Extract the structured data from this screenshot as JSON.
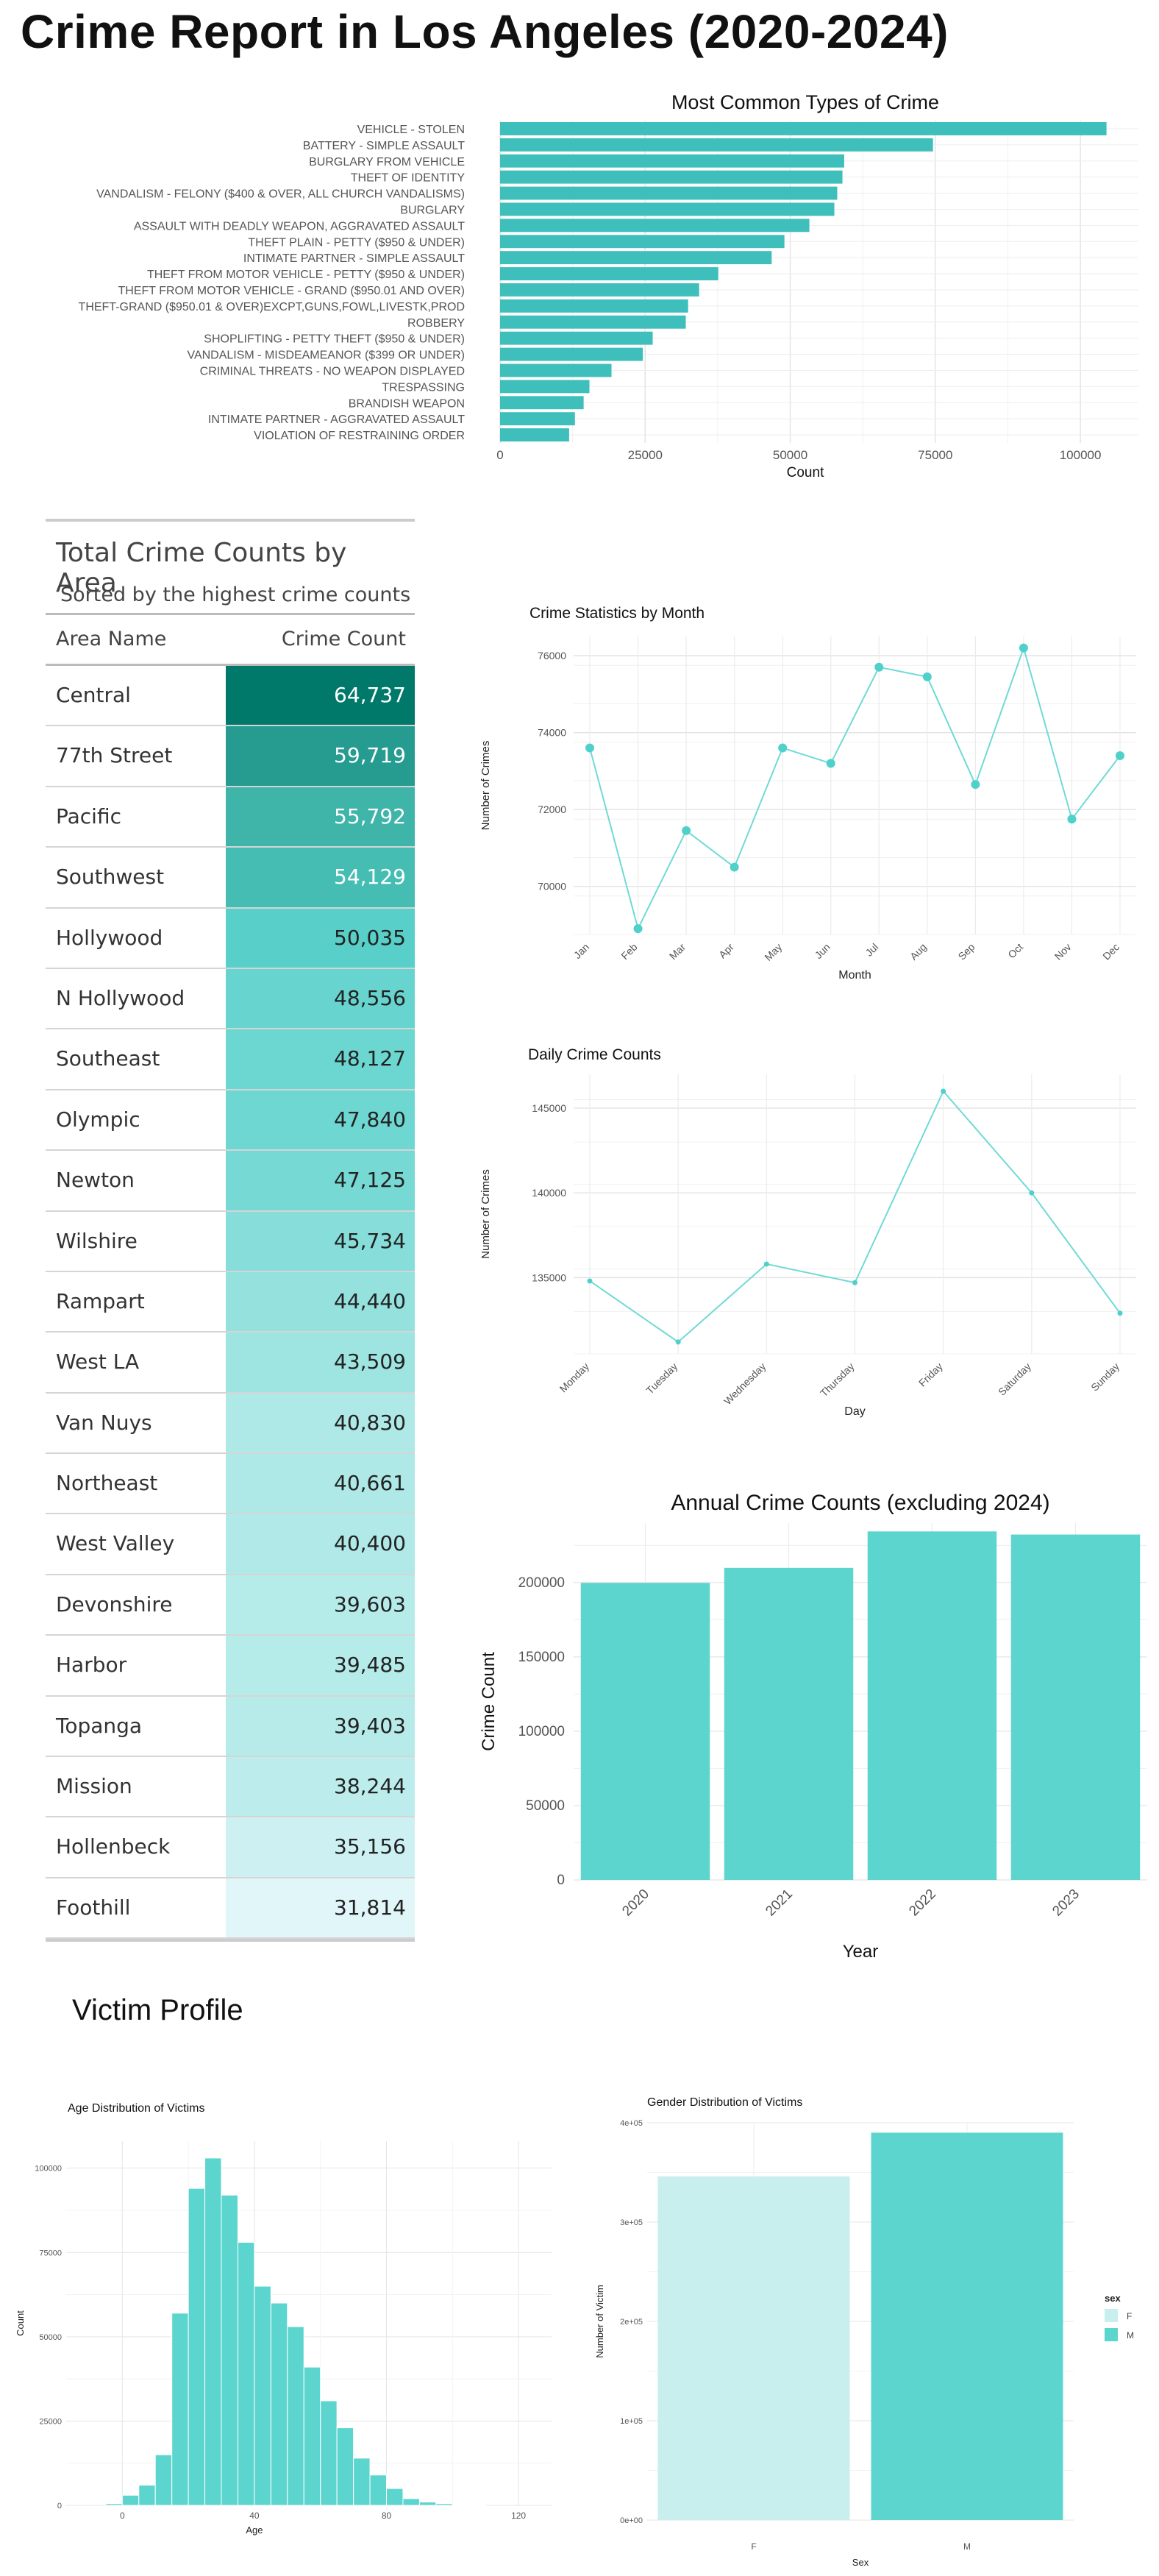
{
  "page": {
    "title": "Crime Report in Los Angeles (2020-2024)",
    "victim_title": "Victim Profile"
  },
  "colors": {
    "teal": "#3fbfbb",
    "light_teal": "#5dd5cf",
    "pale": "#c8eeee"
  },
  "crime_types": {
    "title": "Most Common Types of Crime",
    "xlabel": "Count",
    "ticks": [
      "0",
      "25000",
      "50000",
      "75000",
      "100000"
    ]
  },
  "area_table": {
    "title": "Total Crime Counts by Area",
    "subtitle": "Sorted by the highest crime counts",
    "col_area": "Area Name",
    "col_count": "Crime Count",
    "rows": [
      {
        "name": "Central",
        "count": "64,737",
        "value": 64737
      },
      {
        "name": "77th Street",
        "count": "59,719",
        "value": 59719
      },
      {
        "name": "Pacific",
        "count": "55,792",
        "value": 55792
      },
      {
        "name": "Southwest",
        "count": "54,129",
        "value": 54129
      },
      {
        "name": "Hollywood",
        "count": "50,035",
        "value": 50035
      },
      {
        "name": "N Hollywood",
        "count": "48,556",
        "value": 48556
      },
      {
        "name": "Southeast",
        "count": "48,127",
        "value": 48127
      },
      {
        "name": "Olympic",
        "count": "47,840",
        "value": 47840
      },
      {
        "name": "Newton",
        "count": "47,125",
        "value": 47125
      },
      {
        "name": "Wilshire",
        "count": "45,734",
        "value": 45734
      },
      {
        "name": "Rampart",
        "count": "44,440",
        "value": 44440
      },
      {
        "name": "West LA",
        "count": "43,509",
        "value": 43509
      },
      {
        "name": "Van Nuys",
        "count": "40,830",
        "value": 40830
      },
      {
        "name": "Northeast",
        "count": "40,661",
        "value": 40661
      },
      {
        "name": "West Valley",
        "count": "40,400",
        "value": 40400
      },
      {
        "name": "Devonshire",
        "count": "39,603",
        "value": 39603
      },
      {
        "name": "Harbor",
        "count": "39,485",
        "value": 39485
      },
      {
        "name": "Topanga",
        "count": "39,403",
        "value": 39403
      },
      {
        "name": "Mission",
        "count": "38,244",
        "value": 38244
      },
      {
        "name": "Hollenbeck",
        "count": "35,156",
        "value": 35156
      },
      {
        "name": "Foothill",
        "count": "31,814",
        "value": 31814
      }
    ]
  },
  "chart_data": [
    {
      "id": "crime_types",
      "type": "bar",
      "orientation": "horizontal",
      "title": "Most Common Types of Crime",
      "xlabel": "Count",
      "ylabel": "",
      "xlim": [
        0,
        110000
      ],
      "categories": [
        "VEHICLE - STOLEN",
        "BATTERY - SIMPLE ASSAULT",
        "BURGLARY FROM VEHICLE",
        "THEFT OF IDENTITY",
        "VANDALISM - FELONY ($400 & OVER, ALL CHURCH VANDALISMS)",
        "BURGLARY",
        "ASSAULT WITH DEADLY WEAPON, AGGRAVATED ASSAULT",
        "THEFT PLAIN - PETTY ($950 & UNDER)",
        "INTIMATE PARTNER - SIMPLE ASSAULT",
        "THEFT FROM MOTOR VEHICLE - PETTY ($950 & UNDER)",
        "THEFT FROM MOTOR VEHICLE - GRAND ($950.01 AND OVER)",
        "THEFT-GRAND ($950.01 & OVER)EXCPT,GUNS,FOWL,LIVESTK,PROD",
        "ROBBERY",
        "SHOPLIFTING - PETTY THEFT ($950 & UNDER)",
        "VANDALISM - MISDEAMEANOR ($399 OR UNDER)",
        "CRIMINAL THREATS - NO WEAPON DISPLAYED",
        "TRESPASSING",
        "BRANDISH WEAPON",
        "INTIMATE PARTNER - AGGRAVATED ASSAULT",
        "VIOLATION OF RESTRAINING ORDER"
      ],
      "values": [
        104500,
        74600,
        59300,
        59000,
        58100,
        57600,
        53300,
        49000,
        46800,
        37600,
        34300,
        32400,
        32000,
        26300,
        24600,
        19200,
        15400,
        14400,
        12900,
        11900
      ],
      "grid": true
    },
    {
      "id": "monthly",
      "type": "line",
      "title": "Crime Statistics by Month",
      "xlabel": "Month",
      "ylabel": "Number of Crimes",
      "categories": [
        "Jan",
        "Feb",
        "Mar",
        "Apr",
        "May",
        "Jun",
        "Jul",
        "Aug",
        "Sep",
        "Oct",
        "Nov",
        "Dec"
      ],
      "values": [
        73600,
        68900,
        71450,
        70500,
        73600,
        73200,
        75700,
        75450,
        72650,
        76200,
        71750,
        73400
      ],
      "yticks": [
        "70000",
        "72000",
        "74000",
        "76000"
      ],
      "grid": true
    },
    {
      "id": "daily",
      "type": "line",
      "title": "Daily Crime Counts",
      "xlabel": "Day",
      "ylabel": "Number of Crimes",
      "categories": [
        "Monday",
        "Tuesday",
        "Wednesday",
        "Thursday",
        "Friday",
        "Saturday",
        "Sunday"
      ],
      "values": [
        134800,
        131200,
        135800,
        134700,
        146000,
        140000,
        132900
      ],
      "yticks": [
        "135000",
        "140000",
        "145000"
      ],
      "grid": true
    },
    {
      "id": "annual",
      "type": "bar",
      "title": "Annual Crime Counts (excluding 2024)",
      "xlabel": "Year",
      "ylabel": "Crime Count",
      "categories": [
        "2020",
        "2021",
        "2022",
        "2023"
      ],
      "values": [
        199800,
        209900,
        234400,
        232300
      ],
      "yticks": [
        "0",
        "50000",
        "100000",
        "150000",
        "200000"
      ],
      "grid": true
    },
    {
      "id": "age",
      "type": "bar",
      "title": "Age Distribution of Victims",
      "xlabel": "Age",
      "ylabel": "Count",
      "bin_width": 5,
      "bin_starts": [
        -5,
        0,
        5,
        10,
        15,
        20,
        25,
        30,
        35,
        40,
        45,
        50,
        55,
        60,
        65,
        70,
        75,
        80,
        85,
        90,
        95,
        100,
        105
      ],
      "values": [
        500,
        3000,
        6000,
        15000,
        57000,
        94000,
        103000,
        92000,
        78000,
        65000,
        60000,
        53000,
        41000,
        31000,
        23000,
        14000,
        9000,
        5000,
        2000,
        1000,
        500,
        200,
        100
      ],
      "xticks": [
        "0",
        "40",
        "80",
        "120"
      ],
      "yticks": [
        "0",
        "25000",
        "50000",
        "75000",
        "100000"
      ],
      "grid": true
    },
    {
      "id": "gender",
      "type": "bar",
      "title": "Gender Distribution of Victims",
      "xlabel": "Sex",
      "ylabel": "Number of Victim",
      "categories": [
        "F",
        "M"
      ],
      "values": [
        346000,
        390000
      ],
      "yticks": [
        "0e+00",
        "1e+05",
        "2e+05",
        "3e+05",
        "4e+05"
      ],
      "legend": {
        "title": "sex",
        "items": [
          "F",
          "M"
        ],
        "position": "right"
      },
      "colors": [
        "#c8eeee",
        "#5dd5cf"
      ],
      "grid": true
    }
  ]
}
